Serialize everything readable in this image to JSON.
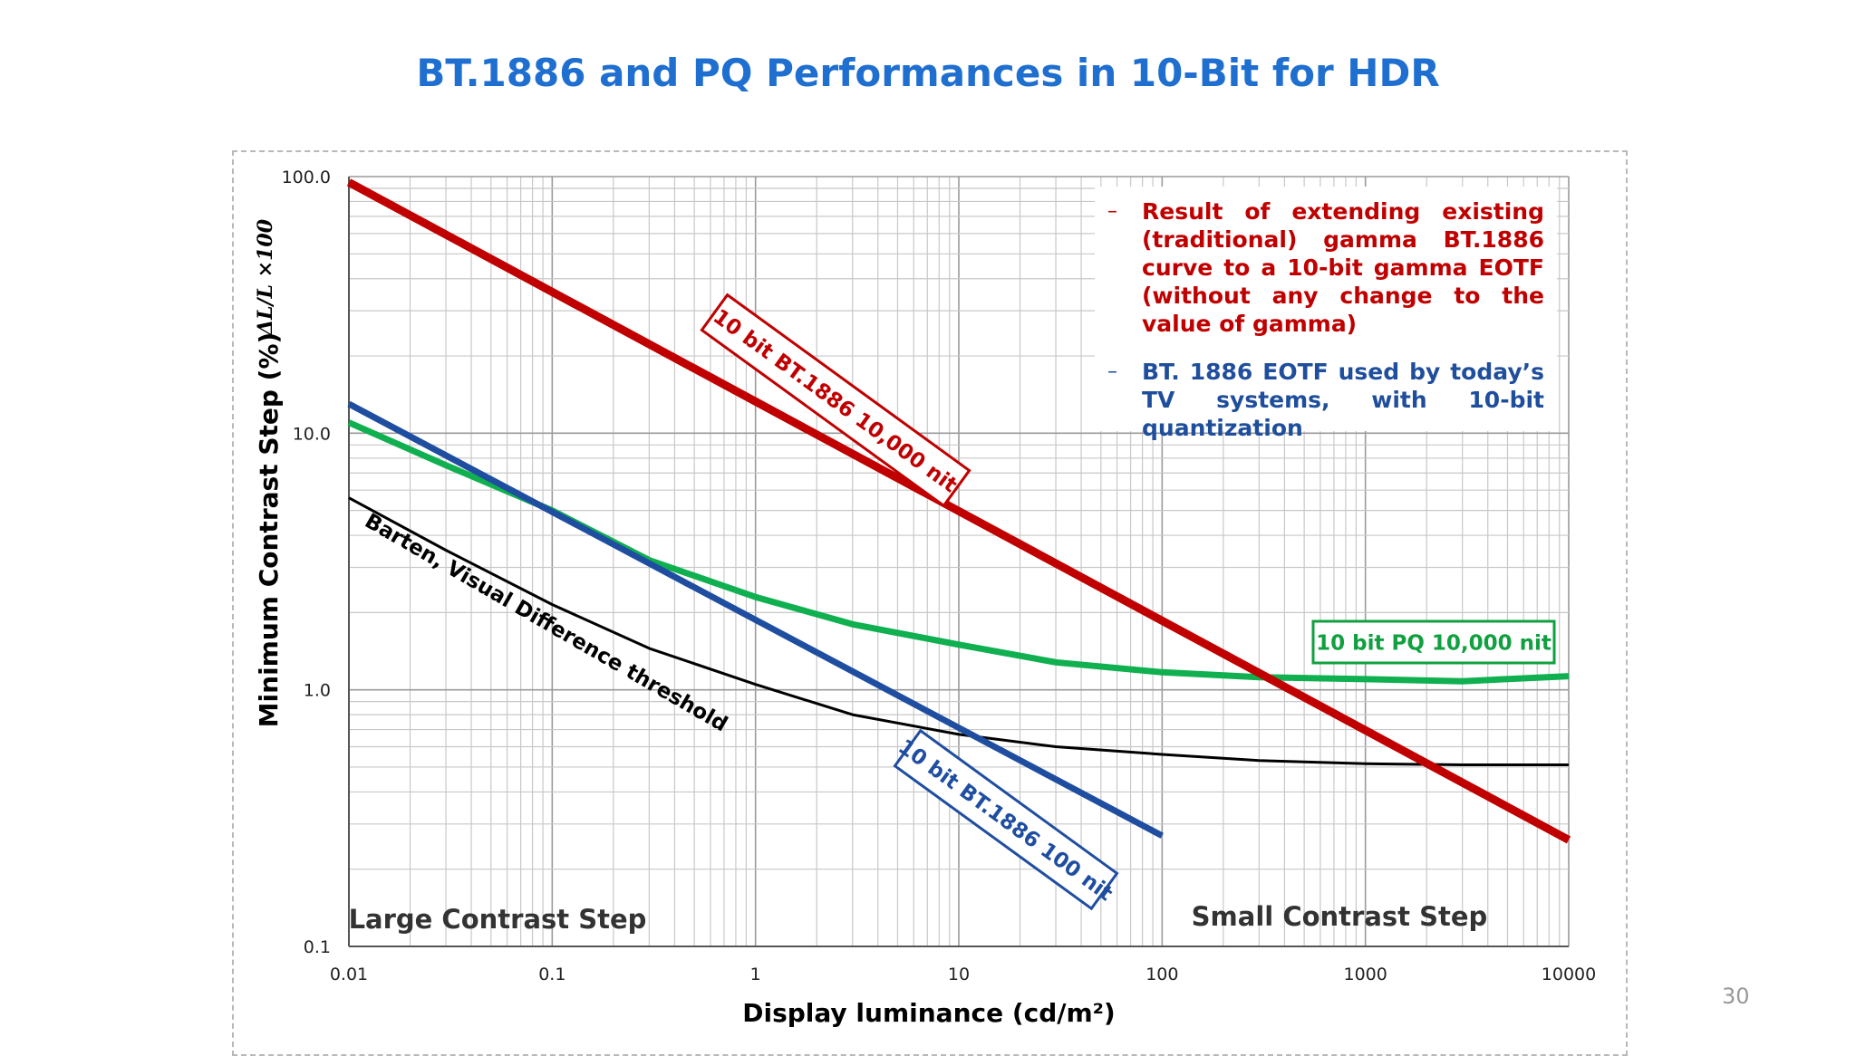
{
  "slide": {
    "title": "BT.1886 and PQ Performances in 10-Bit for HDR",
    "page_number": "30"
  },
  "legend": [
    {
      "text": "Result of extending existing (traditional) gamma BT.1886 curve to a 10-bit gamma EOTF (without any change to the value of gamma)",
      "color": "#c00000",
      "dash": "–"
    },
    {
      "text": "BT. 1886 EOTF used by today’s TV systems, with 10-bit quantization",
      "color": "#1f4e9c",
      "dash": "–"
    }
  ],
  "chart_data": {
    "type": "line",
    "title": "",
    "xlabel": "Display luminance (cd/m²)",
    "ylabel": "Minimum Contrast Step (%)",
    "ylabel_formula": "ΔL/L ×100",
    "x_scale": "log",
    "y_scale": "log",
    "xlim": [
      0.01,
      10000
    ],
    "ylim": [
      0.1,
      100
    ],
    "x_ticks": [
      "0.01",
      "0.1",
      "1",
      "10",
      "100",
      "1000",
      "10000"
    ],
    "y_ticks": [
      "0.1",
      "1.0",
      "10.0",
      "100.0"
    ],
    "grid": true,
    "series": [
      {
        "name": "10 bit BT.1886 10,000 nit",
        "color": "#c00000",
        "x": [
          0.01,
          10000
        ],
        "y": [
          95,
          0.26
        ]
      },
      {
        "name": "10 bit BT.1886 100 nit",
        "color": "#1f4ea0",
        "x": [
          0.01,
          100
        ],
        "y": [
          13,
          0.27
        ]
      },
      {
        "name": "10 bit PQ 10,000 nit",
        "color": "#10b050",
        "x": [
          0.01,
          0.03,
          0.1,
          0.3,
          1,
          3,
          10,
          30,
          100,
          300,
          1000,
          3000,
          10000
        ],
        "y": [
          11,
          7.5,
          5.0,
          3.2,
          2.3,
          1.8,
          1.5,
          1.28,
          1.17,
          1.12,
          1.1,
          1.08,
          1.13
        ]
      },
      {
        "name": "Barten, Visual Difference threshold",
        "color": "#000000",
        "x": [
          0.01,
          0.03,
          0.1,
          0.3,
          1,
          3,
          10,
          30,
          100,
          300,
          1000,
          3000,
          10000
        ],
        "y": [
          5.6,
          3.5,
          2.15,
          1.45,
          1.05,
          0.8,
          0.67,
          0.6,
          0.56,
          0.53,
          0.515,
          0.51,
          0.51
        ]
      }
    ],
    "annotations": [
      {
        "text": "10 bit BT.1886 10,000 nit",
        "color": "#c00000"
      },
      {
        "text": "10 bit BT.1886 100 nit",
        "color": "#1f4ea0"
      },
      {
        "text": "10 bit PQ 10,000 nit",
        "color": "#10a040"
      },
      {
        "text": "Barten, Visual Difference threshold",
        "color": "#000000"
      },
      {
        "text": "Large Contrast Step",
        "color": "#333333"
      },
      {
        "text": "Small Contrast Step",
        "color": "#333333"
      }
    ]
  }
}
